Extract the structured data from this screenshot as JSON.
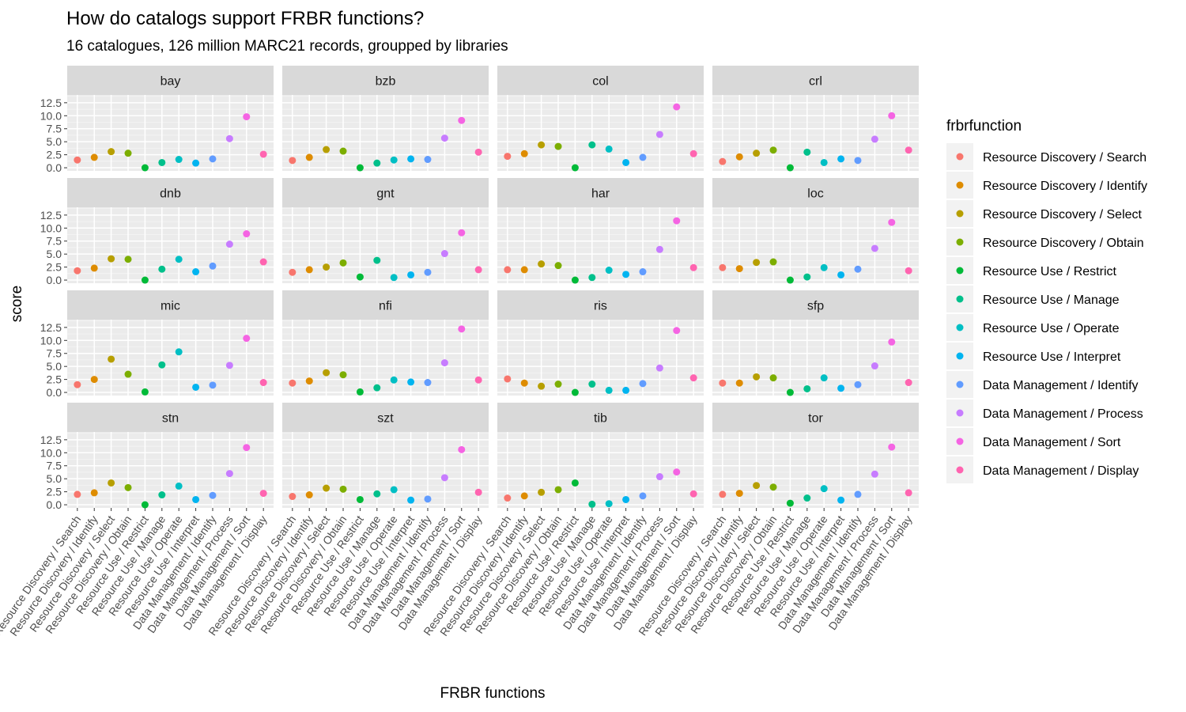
{
  "chart_data": {
    "type": "scatter",
    "title": "How do catalogs support FRBR functions?",
    "subtitle": "16 catalogues, 126 million MARC21 records, groupped by libraries",
    "xlabel": "FRBR functions",
    "ylabel": "score",
    "ylim": [
      -0.6,
      14.0
    ],
    "yticks": [
      "0.0",
      "2.5",
      "5.0",
      "7.5",
      "10.0",
      "12.5"
    ],
    "grid": true,
    "legend_title": "frbrfunction",
    "legend_position": "right",
    "categories": [
      "Resource Discovery / Search",
      "Resource Discovery / Identify",
      "Resource Discovery / Select",
      "Resource Discovery / Obtain",
      "Resource Use / Restrict",
      "Resource Use / Manage",
      "Resource Use / Operate",
      "Resource Use / Interpret",
      "Data Management / Identify",
      "Data Management / Process",
      "Data Management / Sort",
      "Data Management / Display"
    ],
    "colors": [
      "#F8766D",
      "#DE8C00",
      "#B79F00",
      "#7CAE00",
      "#00BA38",
      "#00C08B",
      "#00BFC4",
      "#00B4F0",
      "#619CFF",
      "#C77CFF",
      "#F564E3",
      "#FF64B0"
    ],
    "panels": [
      {
        "name": "bay",
        "values": [
          1.5,
          2.0,
          3.1,
          2.8,
          0.0,
          1.0,
          1.6,
          0.9,
          1.7,
          5.6,
          9.8,
          2.6
        ]
      },
      {
        "name": "bzb",
        "values": [
          1.4,
          2.0,
          3.5,
          3.2,
          0.0,
          0.9,
          1.5,
          1.7,
          1.6,
          5.7,
          9.1,
          3.0
        ]
      },
      {
        "name": "col",
        "values": [
          2.2,
          2.7,
          4.4,
          4.1,
          0.0,
          4.4,
          3.6,
          1.0,
          2.0,
          6.4,
          11.7,
          2.7
        ]
      },
      {
        "name": "crl",
        "values": [
          1.2,
          2.1,
          2.8,
          3.4,
          0.0,
          3.0,
          1.0,
          1.7,
          1.4,
          5.5,
          10.0,
          3.4
        ]
      },
      {
        "name": "dnb",
        "values": [
          1.8,
          2.3,
          4.1,
          4.0,
          0.0,
          2.1,
          4.0,
          1.6,
          2.7,
          6.9,
          8.9,
          3.5
        ]
      },
      {
        "name": "gnt",
        "values": [
          1.5,
          2.0,
          2.5,
          3.3,
          0.6,
          3.8,
          0.5,
          1.0,
          1.5,
          5.1,
          9.1,
          2.0
        ]
      },
      {
        "name": "har",
        "values": [
          2.0,
          2.0,
          3.1,
          2.8,
          0.0,
          0.5,
          1.9,
          1.1,
          1.6,
          5.9,
          11.4,
          2.4
        ]
      },
      {
        "name": "loc",
        "values": [
          2.4,
          2.2,
          3.4,
          3.5,
          0.0,
          0.6,
          2.4,
          1.0,
          2.1,
          6.1,
          11.1,
          1.8
        ]
      },
      {
        "name": "mic",
        "values": [
          1.5,
          2.5,
          6.4,
          3.5,
          0.1,
          5.3,
          7.8,
          1.0,
          1.4,
          5.2,
          10.4,
          1.9
        ]
      },
      {
        "name": "nfi",
        "values": [
          1.8,
          2.2,
          3.8,
          3.4,
          0.1,
          0.9,
          2.4,
          2.0,
          1.9,
          5.7,
          12.2,
          2.4
        ]
      },
      {
        "name": "ris",
        "values": [
          2.6,
          1.8,
          1.2,
          1.6,
          0.0,
          1.6,
          0.4,
          0.4,
          1.7,
          4.7,
          11.9,
          2.8
        ]
      },
      {
        "name": "sfp",
        "values": [
          1.8,
          1.8,
          3.0,
          2.8,
          0.0,
          0.7,
          2.8,
          0.8,
          1.5,
          5.1,
          9.7,
          1.9
        ]
      },
      {
        "name": "stn",
        "values": [
          2.0,
          2.3,
          4.2,
          3.3,
          0.0,
          1.9,
          3.6,
          1.0,
          1.8,
          6.0,
          11.0,
          2.2
        ]
      },
      {
        "name": "szt",
        "values": [
          1.6,
          1.9,
          3.2,
          3.0,
          1.0,
          2.1,
          2.9,
          0.9,
          1.1,
          5.2,
          10.6,
          2.4
        ]
      },
      {
        "name": "tib",
        "values": [
          1.3,
          1.7,
          2.4,
          2.9,
          4.2,
          0.1,
          0.2,
          1.0,
          1.7,
          5.4,
          6.3,
          2.1
        ]
      },
      {
        "name": "tor",
        "values": [
          2.0,
          2.2,
          3.7,
          3.4,
          0.3,
          1.3,
          3.1,
          0.9,
          2.0,
          5.9,
          11.1,
          2.3
        ]
      }
    ]
  }
}
